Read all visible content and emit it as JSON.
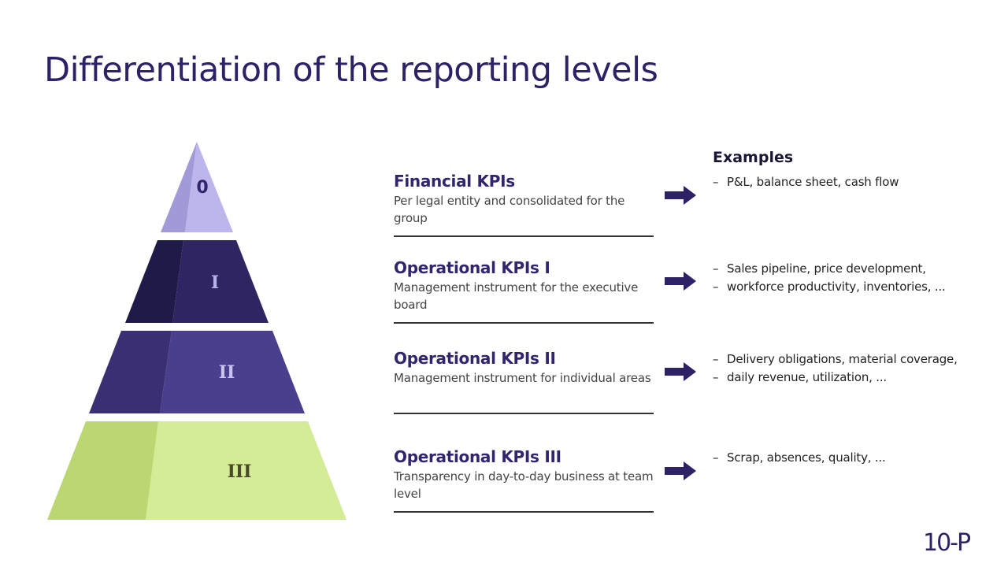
{
  "title": "Differentiation of the reporting levels",
  "pyramid": [
    {
      "label": "0",
      "color_main": "#bdb6ec",
      "color_side": "#a199d8",
      "label_color": "#33246e"
    },
    {
      "label": "I",
      "color_main": "#2f2562",
      "color_side": "#1f1a48",
      "label_color": "#b8b2ea"
    },
    {
      "label": "II",
      "color_main": "#4a3f8c",
      "color_side": "#3a2f73",
      "label_color": "#c8c2f0"
    },
    {
      "label": "III",
      "color_main": "#d4ec96",
      "color_side": "#bad772",
      "label_color": "#4a4a2a"
    }
  ],
  "levels": [
    {
      "title": "Financial KPIs",
      "desc": "Per legal entity and consolidated for the group"
    },
    {
      "title": "Operational KPIs I",
      "desc": "Management instrument for the executive board"
    },
    {
      "title": "Operational KPIs II",
      "desc": "Management instrument for individual areas"
    },
    {
      "title": "Operational KPIs III",
      "desc": "Transparency in day-to-day business at team level"
    }
  ],
  "examples_heading": "Examples",
  "examples": [
    [
      "P&L, balance sheet, cash flow"
    ],
    [
      "Sales pipeline, price development,",
      "workforce productivity, inventories, ..."
    ],
    [
      "Delivery obligations, material coverage,",
      "daily revenue, utilization, ..."
    ],
    [
      "Scrap, absences, quality, ..."
    ]
  ],
  "logo": "10-P",
  "colors": {
    "accent": "#2e2166",
    "arrow": "#2e2166"
  }
}
